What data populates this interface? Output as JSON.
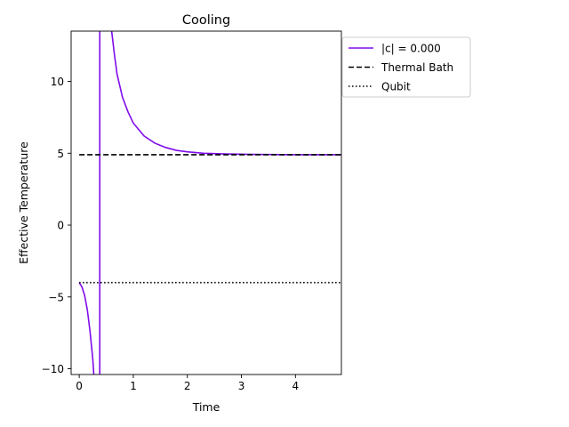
{
  "chart_data": {
    "type": "line",
    "title": "Cooling",
    "xlabel": "Time",
    "ylabel": "Effective Temperature",
    "xlim": [
      -0.15,
      4.85
    ],
    "ylim": [
      -10.4,
      13.5
    ],
    "x_ticks": [
      0,
      1,
      2,
      3,
      4
    ],
    "x_tick_labels": [
      "0",
      "1",
      "2",
      "3",
      "4"
    ],
    "y_ticks": [
      -10,
      -5,
      0,
      5,
      10
    ],
    "y_tick_labels": [
      "−10",
      "−5",
      "0",
      "5",
      "10"
    ],
    "grid": false,
    "legend_position": "outside-top-right",
    "series": [
      {
        "name": "|c| = 0.000",
        "color": "#7f0bea",
        "style": "solid",
        "segments": [
          [
            [
              0.0,
              -4.0
            ],
            [
              0.05,
              -4.3
            ],
            [
              0.1,
              -4.9
            ],
            [
              0.15,
              -5.9
            ],
            [
              0.2,
              -7.4
            ],
            [
              0.25,
              -9.3
            ],
            [
              0.27,
              -10.4
            ]
          ],
          [
            [
              0.38,
              13.5
            ],
            [
              0.38,
              -10.4
            ]
          ],
          [
            [
              0.6,
              13.5
            ],
            [
              0.65,
              11.9
            ],
            [
              0.7,
              10.5
            ],
            [
              0.8,
              8.9
            ],
            [
              0.9,
              7.9
            ],
            [
              1.0,
              7.1
            ],
            [
              1.2,
              6.2
            ],
            [
              1.4,
              5.7
            ],
            [
              1.6,
              5.4
            ],
            [
              1.8,
              5.2
            ],
            [
              2.0,
              5.1
            ],
            [
              2.3,
              5.0
            ],
            [
              2.7,
              4.95
            ],
            [
              3.2,
              4.92
            ],
            [
              4.0,
              4.9
            ],
            [
              4.85,
              4.9
            ]
          ]
        ]
      },
      {
        "name": "Thermal Bath",
        "color": "#000000",
        "style": "dashed",
        "segments": [
          [
            [
              0.0,
              4.9
            ],
            [
              4.85,
              4.9
            ]
          ]
        ]
      },
      {
        "name": "Qubit",
        "color": "#000000",
        "style": "dotted",
        "segments": [
          [
            [
              0.0,
              -4.0
            ],
            [
              4.85,
              -4.0
            ]
          ]
        ]
      }
    ]
  }
}
